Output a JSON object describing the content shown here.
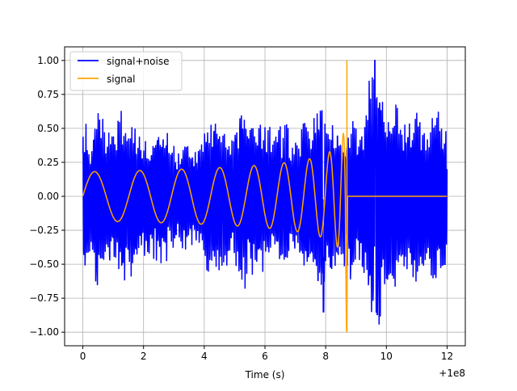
{
  "chart_data": {
    "type": "line",
    "xlabel": "Time (s)",
    "x_offset_label": "+1e8",
    "x_offset": 100000000,
    "ylabel": "",
    "xlim": [
      -0.6,
      12.6
    ],
    "ylim": [
      -1.1,
      1.1
    ],
    "xticks": [
      0,
      2,
      4,
      6,
      8,
      10,
      12
    ],
    "yticks": [
      -1.0,
      -0.75,
      -0.5,
      -0.25,
      0.0,
      0.25,
      0.5,
      0.75,
      1.0
    ],
    "xtick_labels": [
      "0",
      "2",
      "4",
      "6",
      "8",
      "10",
      "12"
    ],
    "ytick_labels": [
      "−1.00",
      "−0.75",
      "−0.50",
      "−0.25",
      "0.00",
      "0.25",
      "0.50",
      "0.75",
      "1.00"
    ],
    "grid": true,
    "legend_placement": "upper left",
    "series": [
      {
        "name": "signal+noise",
        "color": "#0000ff",
        "description_points": {
          "x": [
            0.0,
            0.05,
            0.15,
            0.2,
            0.35,
            0.4,
            0.55,
            0.7,
            0.9,
            1.05,
            1.2,
            1.35,
            1.6,
            1.75,
            1.9,
            2.05,
            2.2,
            2.4,
            2.6,
            2.8,
            3.0,
            3.2,
            3.4,
            3.6,
            3.8,
            4.0,
            4.2,
            4.4,
            4.6,
            4.8,
            5.0,
            5.2,
            5.4,
            5.6,
            5.8,
            6.0,
            6.2,
            6.4,
            6.6,
            6.8,
            7.0,
            7.2,
            7.4,
            7.6,
            7.8,
            8.0,
            8.2,
            8.4,
            8.6,
            8.8,
            9.0,
            9.2,
            9.4,
            9.6,
            9.8,
            10.0,
            10.2,
            10.4,
            10.6,
            10.8,
            11.0,
            11.2,
            11.4,
            11.6,
            11.8,
            12.0
          ],
          "y": [
            -0.45,
            0.5,
            -0.62,
            0.25,
            -0.55,
            0.55,
            -0.75,
            0.45,
            -0.5,
            0.38,
            -0.65,
            0.53,
            -0.62,
            0.45,
            -0.5,
            0.38,
            -0.45,
            0.4,
            -0.6,
            0.35,
            -0.4,
            0.3,
            -0.45,
            0.3,
            -0.35,
            0.4,
            -0.7,
            0.45,
            -0.6,
            0.37,
            -0.5,
            0.67,
            -0.6,
            0.5,
            -0.55,
            0.5,
            -0.55,
            0.37,
            -0.6,
            0.45,
            -0.3,
            0.55,
            -0.6,
            0.45,
            -0.85,
            0.55,
            -0.55,
            0.5,
            -0.3,
            0.65,
            -0.55,
            0.5,
            -0.65,
            1.0,
            -0.87,
            0.6,
            -0.7,
            0.55,
            -0.5,
            0.6,
            -0.6,
            0.5,
            -0.55,
            0.65,
            -0.6,
            0.45
          ]
        }
      },
      {
        "name": "signal",
        "color": "#ffa500",
        "chirp": {
          "start_amplitude": 0.18,
          "end_time": 8.7,
          "peak_amplitude": 1.0,
          "after_end_value": 0.0
        }
      }
    ]
  }
}
